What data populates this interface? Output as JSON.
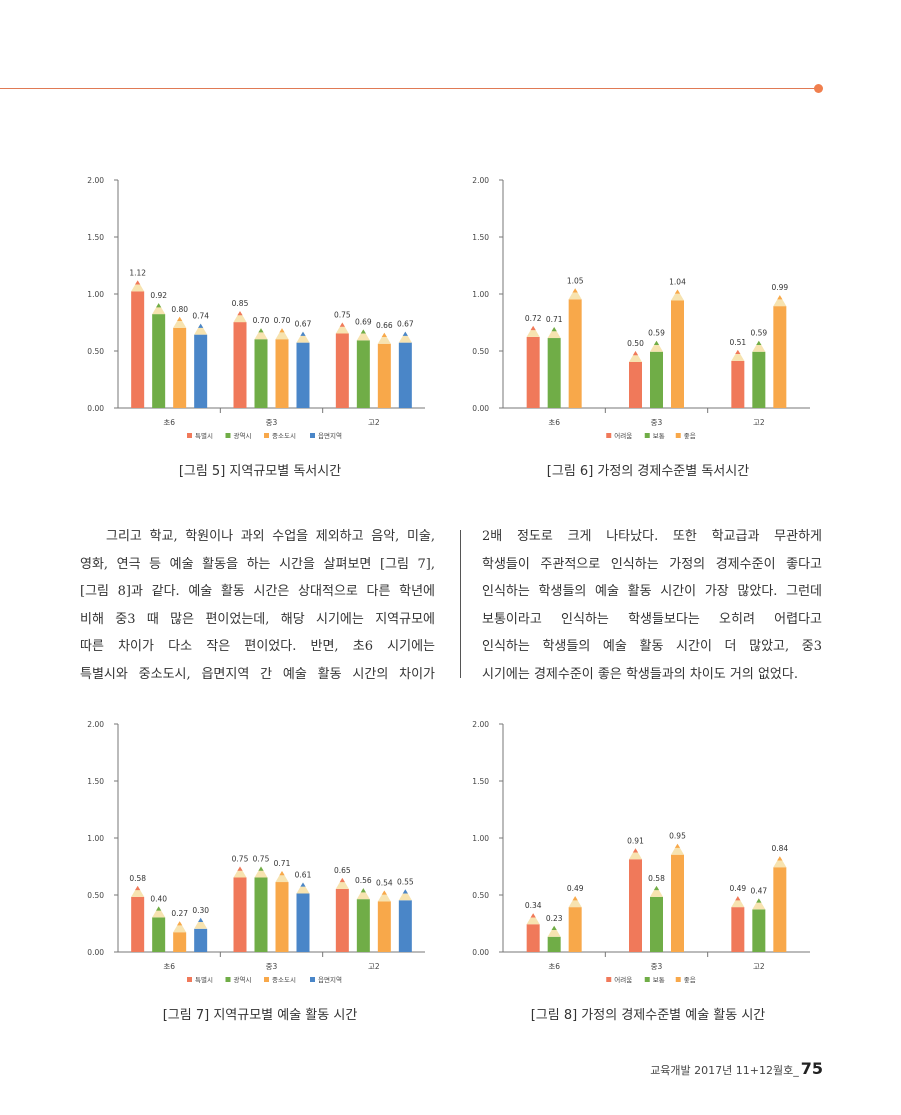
{
  "charts": [
    {
      "id": "fig5",
      "caption": "[그림 5] 지역규모별 독서시간",
      "chart_data": {
        "type": "bar",
        "categories": [
          "초6",
          "중3",
          "고2"
        ],
        "series": [
          {
            "name": "특별시",
            "values": [
              1.12,
              0.85,
              0.75
            ],
            "color": "#f0795a"
          },
          {
            "name": "광역시",
            "values": [
              0.92,
              0.7,
              0.69
            ],
            "color": "#70ad47"
          },
          {
            "name": "중소도시",
            "values": [
              0.8,
              0.7,
              0.66
            ],
            "color": "#f8a84a"
          },
          {
            "name": "읍면지역",
            "values": [
              0.74,
              0.67,
              0.67
            ],
            "color": "#4a86c8"
          }
        ],
        "value_labels": [
          [
            "1.12",
            "0.85",
            "0.75"
          ],
          [
            "0.92",
            "0.70",
            "0.69"
          ],
          [
            "0.80",
            "0.70",
            "0.66"
          ],
          [
            "0.74",
            "0.67",
            "0.67"
          ]
        ],
        "yticks": [
          "2.00",
          "1.50",
          "1.00",
          "0.50",
          "0.00"
        ],
        "ylim": [
          0,
          2
        ],
        "legend_position": "bottom"
      }
    },
    {
      "id": "fig6",
      "caption": "[그림 6] 가정의 경제수준별 독서시간",
      "chart_data": {
        "type": "bar",
        "categories": [
          "초6",
          "중3",
          "고2"
        ],
        "series": [
          {
            "name": "어려움",
            "values": [
              0.72,
              0.5,
              0.51
            ],
            "color": "#f0795a"
          },
          {
            "name": "보통",
            "values": [
              0.71,
              0.59,
              0.59
            ],
            "color": "#70ad47"
          },
          {
            "name": "좋음",
            "values": [
              1.05,
              1.04,
              0.99
            ],
            "color": "#f8a84a"
          }
        ],
        "value_labels": [
          [
            "0.72",
            "0.50",
            "0.51"
          ],
          [
            "0.71",
            "0.59",
            "0.59"
          ],
          [
            "1.05",
            "1.04",
            "0.99"
          ]
        ],
        "yticks": [
          "2.00",
          "1.50",
          "1.00",
          "0.50",
          "0.00"
        ],
        "ylim": [
          0,
          2
        ],
        "legend_position": "bottom"
      }
    },
    {
      "id": "fig7",
      "caption": "[그림 7] 지역규모별 예술 활동 시간",
      "chart_data": {
        "type": "bar",
        "categories": [
          "초6",
          "중3",
          "고2"
        ],
        "series": [
          {
            "name": "특별시",
            "values": [
              0.58,
              0.75,
              0.65
            ],
            "color": "#f0795a"
          },
          {
            "name": "광역시",
            "values": [
              0.4,
              0.75,
              0.56
            ],
            "color": "#70ad47"
          },
          {
            "name": "중소도시",
            "values": [
              0.27,
              0.71,
              0.54
            ],
            "color": "#f8a84a"
          },
          {
            "name": "읍면지역",
            "values": [
              0.3,
              0.61,
              0.55
            ],
            "color": "#4a86c8"
          }
        ],
        "value_labels": [
          [
            "0.58",
            "0.75",
            "0.65"
          ],
          [
            "0.40",
            "0.75",
            "0.56"
          ],
          [
            "0.27",
            "0.71",
            "0.54"
          ],
          [
            "0.30",
            "0.61",
            "0.55"
          ]
        ],
        "yticks": [
          "2.00",
          "1.50",
          "1.00",
          "0.50",
          "0.00"
        ],
        "ylim": [
          0,
          2
        ],
        "legend_position": "bottom"
      }
    },
    {
      "id": "fig8",
      "caption": "[그림 8] 가정의 경제수준별 예술 활동 시간",
      "chart_data": {
        "type": "bar",
        "categories": [
          "초6",
          "중3",
          "고2"
        ],
        "series": [
          {
            "name": "어려움",
            "values": [
              0.34,
              0.91,
              0.49
            ],
            "color": "#f0795a"
          },
          {
            "name": "보통",
            "values": [
              0.23,
              0.58,
              0.47
            ],
            "color": "#70ad47"
          },
          {
            "name": "좋음",
            "values": [
              0.49,
              0.95,
              0.84
            ],
            "color": "#f8a84a"
          }
        ],
        "value_labels": [
          [
            "0.34",
            "0.91",
            "0.49"
          ],
          [
            "0.23",
            "0.58",
            "0.47"
          ],
          [
            "0.49",
            "0.95",
            "0.84"
          ]
        ],
        "yticks": [
          "2.00",
          "1.50",
          "1.00",
          "0.50",
          "0.00"
        ],
        "ylim": [
          0,
          2
        ],
        "legend_position": "bottom"
      }
    }
  ],
  "body": {
    "left_column": [
      "그리고 학교, 학원이나 과외 수업을 제외하고 음악, 미술,",
      "영화, 연극 등 예술 활동을 하는 시간을 살펴보면 [그림 7],",
      "[그림 8]과 같다. 예술 활동 시간은 상대적으로 다른 학년에",
      "비해 중3 때 많은 편이었는데, 해당 시기에는 지역규모에",
      "따른 차이가 다소 작은 편이었다. 반면, 초6 시기에는",
      "특별시와 중소도시, 읍면지역 간 예술 활동 시간의 차이가"
    ],
    "right_column": [
      "2배 정도로 크게 나타났다. 또한 학교급과 무관하게",
      "학생들이 주관적으로 인식하는 가정의 경제수준이 좋다고",
      "인식하는 학생들의 예술 활동 시간이 가장 많았다. 그런데",
      "보통이라고 인식하는 학생들보다는 오히려 어렵다고",
      "인식하는 학생들의 예술 활동 시간이 더 많았고, 중3",
      "시기에는 경제수준이 좋은 학생들과의 차이도 거의 없었다."
    ]
  },
  "footer": {
    "text": "교육개발 2017년 11+12월호_",
    "page_number": "75"
  },
  "colors": {
    "accent": "#f07f4e",
    "tip_wood": "#f7e3b0"
  }
}
